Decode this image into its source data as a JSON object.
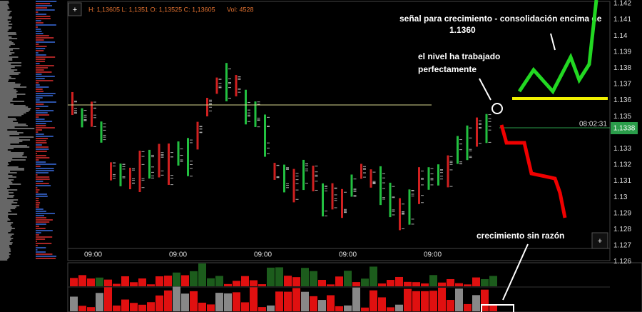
{
  "header": {
    "ohlc": "H: 1,13605 L: 1,1351 O: 1,13525 C: 1,13605",
    "volume": "Vol: 4528"
  },
  "buttons": [
    "+",
    "+"
  ],
  "price_axis": [
    "1.142",
    "1.141",
    "1.14",
    "1.139",
    "1.138",
    "1.137",
    "1.136",
    "1.135",
    "1.133",
    "1.132",
    "1.131",
    "1.13",
    "1.129",
    "1.128",
    "1.127",
    "1.126"
  ],
  "time_axis": [
    "09:00",
    "09:00",
    "09:00",
    "09:00",
    "09:00"
  ],
  "clock": "08:02:31",
  "current_price": "1,1338",
  "annotations": {
    "signal": "señal para crecimiento - consolidación encima de",
    "signal_level": "1.1360",
    "level_note": [
      "el nivel ha trabajado",
      "perfectamente"
    ],
    "growth_note": "crecimiento sin razón"
  }
}
